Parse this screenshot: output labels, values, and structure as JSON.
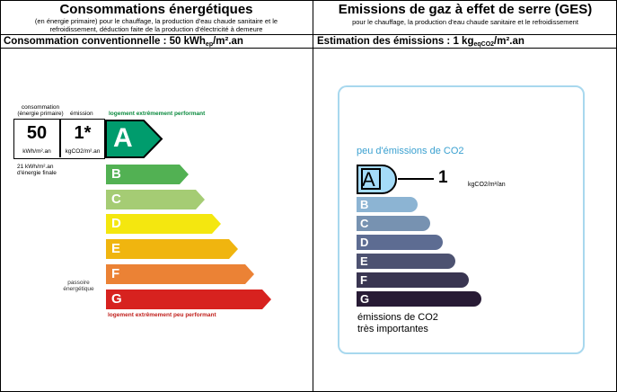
{
  "left_header": {
    "title": "Consommations énergétiques",
    "subtitle_1": "(en énergie primaire) pour le chauffage, la production d'eau chaude sanitaire et le",
    "subtitle_2": "refroidissement, déduction faite de la production d'électricité à demeure",
    "summary_prefix": "Consommation conventionnelle : 50 kWh",
    "summary_sub": "ep",
    "summary_suffix": "/m².an"
  },
  "right_header": {
    "title": "Emissions de gaz à effet de serre (GES)",
    "subtitle": "pour le chauffage, la production d'eau chaude sanitaire et le refroidissement",
    "summary_prefix": "Estimation des émissions : 1 kg",
    "summary_sub": "eqCO2",
    "summary_suffix": "/m².an"
  },
  "energy": {
    "col_consumption": "consommation",
    "col_consumption_2": "(énergie primaire)",
    "col_emission": "émission",
    "top_label": "logement extrêmement performant",
    "bottom_label": "logement extrêmement peu performant",
    "consumption_value": "50",
    "consumption_unit": "kWh/m².an",
    "emission_value": "1*",
    "emission_unit": "kgCO2/m².an",
    "final_energy_1": "21 kWh/m².an",
    "final_energy_2": "d'énergie finale",
    "sieve_1": "passoire",
    "sieve_2": "énergétique",
    "current_class": "A",
    "classes": [
      {
        "letter": "A",
        "color": "#009c6d"
      },
      {
        "letter": "B",
        "color": "#52b153"
      },
      {
        "letter": "C",
        "color": "#a5cc74"
      },
      {
        "letter": "D",
        "color": "#f4e70f"
      },
      {
        "letter": "E",
        "color": "#f0b50f"
      },
      {
        "letter": "F",
        "color": "#eb8235"
      },
      {
        "letter": "G",
        "color": "#d7221f"
      }
    ]
  },
  "ges": {
    "top_label": "peu d'émissions de CO2",
    "current_class": "A",
    "value": "1",
    "unit": "kgCO2/m²/an",
    "bottom_label_1": "émissions de CO2",
    "bottom_label_2": "très importantes",
    "classes": [
      {
        "letter": "A",
        "color": "#a4dbf8"
      },
      {
        "letter": "B",
        "color": "#8cb4d3"
      },
      {
        "letter": "C",
        "color": "#7792b1"
      },
      {
        "letter": "D",
        "color": "#5d6c92"
      },
      {
        "letter": "E",
        "color": "#4d5271"
      },
      {
        "letter": "F",
        "color": "#393551"
      },
      {
        "letter": "G",
        "color": "#281b35"
      }
    ]
  }
}
